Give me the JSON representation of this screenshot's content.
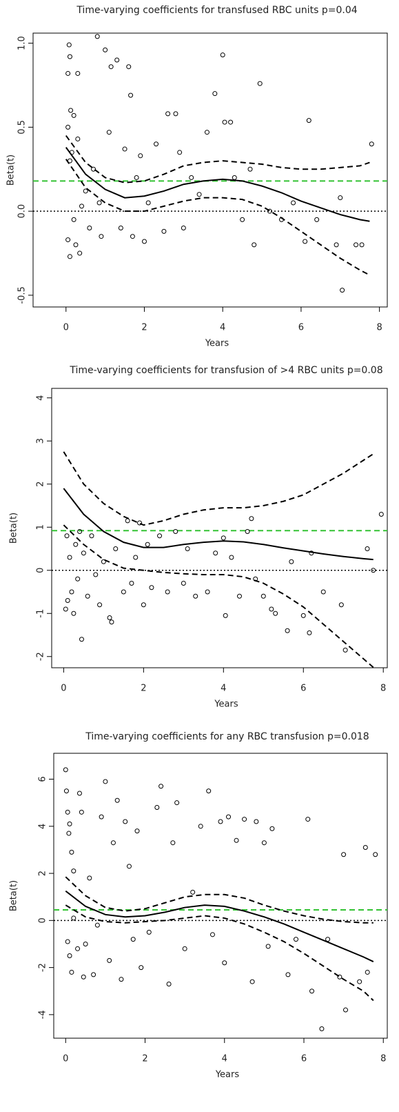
{
  "chart_data": [
    {
      "type": "scatter",
      "title": "Time-varying coefficients for transfused RBC units p=0.04",
      "xlabel": "Years",
      "ylabel": "Beta(t)",
      "xlim": [
        -0.84,
        8.2
      ],
      "ylim": [
        -0.57,
        1.06
      ],
      "xticks": [
        0,
        2,
        4,
        6,
        8
      ],
      "yticks": [
        -0.5,
        {
          "value": 0,
          "label": "0.0"
        },
        0.5,
        {
          "value": 1,
          "label": "1.0"
        }
      ],
      "hlines": [
        {
          "value": 0.18,
          "color": "#33c233",
          "style": "dashed"
        },
        {
          "value": 0,
          "color": "#000000",
          "style": "dotted"
        }
      ],
      "series": [
        {
          "style": "points",
          "color": "#000000",
          "x": [
            0.05,
            0.08,
            0.1,
            0.12,
            0.05,
            0.2,
            0.3,
            0.1,
            0.15,
            0.3,
            0.05,
            0.1,
            0.2,
            0.25,
            0.35,
            0.4,
            0.5,
            0.6,
            0.7,
            0.8,
            0.85,
            0.9,
            1.0,
            1.1,
            1.15,
            1.3,
            1.4,
            1.5,
            1.6,
            1.65,
            1.7,
            1.8,
            1.9,
            2.0,
            2.1,
            2.3,
            2.5,
            2.6,
            2.8,
            2.9,
            3.0,
            3.2,
            3.4,
            3.6,
            3.8,
            4.0,
            4.05,
            4.2,
            4.3,
            4.5,
            4.7,
            4.8,
            4.95,
            5.2,
            5.5,
            5.8,
            6.1,
            6.2,
            6.4,
            6.9,
            7.0,
            7.05,
            7.4,
            7.55,
            7.8
          ],
          "values": [
            0.82,
            0.99,
            0.92,
            0.6,
            0.5,
            0.57,
            0.82,
            0.3,
            0.35,
            0.43,
            -0.17,
            -0.27,
            -0.05,
            -0.2,
            -0.25,
            0.03,
            0.12,
            -0.1,
            0.25,
            1.04,
            0.05,
            -0.15,
            0.96,
            0.47,
            0.86,
            0.9,
            -0.1,
            0.37,
            0.86,
            0.69,
            -0.15,
            0.2,
            0.33,
            -0.18,
            0.05,
            0.4,
            -0.12,
            0.58,
            0.58,
            0.35,
            -0.1,
            0.2,
            0.1,
            0.47,
            0.7,
            0.93,
            0.53,
            0.53,
            0.2,
            -0.05,
            0.25,
            -0.2,
            0.76,
            0.0,
            -0.05,
            0.05,
            -0.18,
            0.54,
            -0.05,
            -0.2,
            0.08,
            -0.47,
            -0.2,
            -0.2,
            0.4
          ]
        },
        {
          "style": "solid",
          "color": "#000000",
          "x": [
            0,
            0.5,
            1,
            1.5,
            2,
            2.5,
            3,
            3.5,
            4,
            4.5,
            5,
            5.5,
            6,
            6.5,
            7,
            7.5,
            7.75
          ],
          "values": [
            0.38,
            0.22,
            0.13,
            0.08,
            0.09,
            0.12,
            0.16,
            0.18,
            0.19,
            0.18,
            0.15,
            0.11,
            0.06,
            0.02,
            -0.02,
            -0.05,
            -0.06
          ]
        },
        {
          "style": "dashed",
          "color": "#000000",
          "x": [
            0,
            0.5,
            1,
            1.5,
            2,
            2.5,
            3,
            3.5,
            4,
            4.5,
            5,
            5.5,
            6,
            6.5,
            7,
            7.5,
            7.75
          ],
          "values": [
            0.45,
            0.29,
            0.2,
            0.17,
            0.18,
            0.22,
            0.27,
            0.29,
            0.3,
            0.29,
            0.28,
            0.26,
            0.25,
            0.25,
            0.26,
            0.27,
            0.29
          ]
        },
        {
          "style": "dashed",
          "color": "#000000",
          "x": [
            0,
            0.5,
            1,
            1.5,
            2,
            2.5,
            3,
            3.5,
            4,
            4.5,
            5,
            5.5,
            6,
            6.5,
            7,
            7.5,
            7.75
          ],
          "values": [
            0.31,
            0.14,
            0.05,
            0.0,
            0.0,
            0.03,
            0.06,
            0.08,
            0.08,
            0.07,
            0.03,
            -0.04,
            -0.12,
            -0.2,
            -0.28,
            -0.35,
            -0.38
          ]
        }
      ]
    },
    {
      "type": "scatter",
      "title": "Time-varying coefficients for transfusion of >4 RBC units  p=0.08",
      "xlabel": "Years",
      "ylabel": "Beta(t)",
      "xlim": [
        -0.3,
        8.1
      ],
      "ylim": [
        -2.26,
        4.22
      ],
      "xticks": [
        0,
        2,
        4,
        6,
        8
      ],
      "yticks": [
        -2,
        -1,
        0,
        1,
        2,
        3,
        4
      ],
      "hlines": [
        {
          "value": 0.92,
          "color": "#33c233",
          "style": "dashed"
        },
        {
          "value": 0,
          "color": "#000000",
          "style": "dotted"
        }
      ],
      "series": [
        {
          "style": "points",
          "color": "#000000",
          "x": [
            0.05,
            0.1,
            0.08,
            0.15,
            0.2,
            0.25,
            0.3,
            0.35,
            0.4,
            0.45,
            0.5,
            0.6,
            0.7,
            0.8,
            0.9,
            1.0,
            1.15,
            1.2,
            1.3,
            1.5,
            1.6,
            1.7,
            1.8,
            1.9,
            2.0,
            2.1,
            2.2,
            2.4,
            2.6,
            2.8,
            3.0,
            3.1,
            3.3,
            3.6,
            3.8,
            4.0,
            4.05,
            4.2,
            4.4,
            4.6,
            4.7,
            4.8,
            5.0,
            5.2,
            5.3,
            5.6,
            5.7,
            6.0,
            6.15,
            6.2,
            6.5,
            6.95,
            7.05,
            7.6,
            7.75,
            7.95
          ],
          "values": [
            -0.9,
            -0.7,
            0.8,
            0.3,
            -0.5,
            -1.0,
            0.6,
            -0.2,
            0.9,
            -1.6,
            0.4,
            -0.6,
            0.8,
            -0.1,
            -0.8,
            0.2,
            -1.1,
            -1.2,
            0.5,
            -0.5,
            1.15,
            -0.3,
            0.3,
            1.1,
            -0.8,
            0.6,
            -0.4,
            0.8,
            -0.5,
            0.9,
            -0.3,
            0.5,
            -0.6,
            -0.5,
            0.4,
            0.75,
            -1.05,
            0.3,
            -0.6,
            0.9,
            1.2,
            -0.2,
            -0.6,
            -0.9,
            -1.0,
            -1.4,
            0.2,
            -1.05,
            -1.45,
            0.4,
            -0.5,
            -0.8,
            -1.85,
            0.5,
            0.0,
            1.3
          ]
        },
        {
          "style": "solid",
          "color": "#000000",
          "x": [
            0,
            0.5,
            1,
            1.5,
            2,
            2.5,
            3,
            3.5,
            4,
            4.5,
            5,
            5.5,
            6,
            6.5,
            7,
            7.5,
            7.75
          ],
          "values": [
            1.9,
            1.3,
            0.9,
            0.65,
            0.53,
            0.53,
            0.6,
            0.65,
            0.68,
            0.66,
            0.6,
            0.52,
            0.45,
            0.38,
            0.32,
            0.27,
            0.25
          ]
        },
        {
          "style": "dashed",
          "color": "#000000",
          "x": [
            0,
            0.5,
            1,
            1.5,
            2,
            2.5,
            3,
            3.5,
            4,
            4.5,
            5,
            5.5,
            6,
            6.5,
            7,
            7.5,
            7.75
          ],
          "values": [
            2.75,
            2.0,
            1.55,
            1.25,
            1.05,
            1.15,
            1.3,
            1.4,
            1.45,
            1.45,
            1.5,
            1.6,
            1.75,
            2.0,
            2.25,
            2.55,
            2.7
          ]
        },
        {
          "style": "dashed",
          "color": "#000000",
          "x": [
            0,
            0.5,
            1,
            1.5,
            2,
            2.5,
            3,
            3.5,
            4,
            4.5,
            5,
            5.5,
            6,
            6.5,
            7,
            7.5,
            7.75
          ],
          "values": [
            1.05,
            0.6,
            0.25,
            0.05,
            0.0,
            -0.05,
            -0.08,
            -0.1,
            -0.1,
            -0.15,
            -0.3,
            -0.55,
            -0.85,
            -1.25,
            -1.65,
            -2.05,
            -2.25
          ]
        }
      ]
    },
    {
      "type": "scatter",
      "title": "Time-varying coefficients  for any RBC transfusion  p=0.018",
      "xlabel": "Years",
      "ylabel": "Beta(t)",
      "xlim": [
        -0.3,
        8.1
      ],
      "ylim": [
        -5.0,
        7.1
      ],
      "xticks": [
        0,
        2,
        4,
        6,
        8
      ],
      "yticks": [
        -4,
        -2,
        0,
        2,
        4,
        6
      ],
      "hlines": [
        {
          "value": 0.45,
          "color": "#33c233",
          "style": "dashed"
        },
        {
          "value": 0,
          "color": "#000000",
          "style": "dotted"
        }
      ],
      "series": [
        {
          "style": "points",
          "color": "#000000",
          "x": [
            0.0,
            0.02,
            0.05,
            0.1,
            0.08,
            0.15,
            0.2,
            0.05,
            0.1,
            0.15,
            0.2,
            0.3,
            0.35,
            0.4,
            0.45,
            0.5,
            0.6,
            0.7,
            0.8,
            0.9,
            1.0,
            1.1,
            1.2,
            1.3,
            1.4,
            1.5,
            1.6,
            1.7,
            1.8,
            1.9,
            2.1,
            2.3,
            2.4,
            2.6,
            2.7,
            2.8,
            3.0,
            3.2,
            3.4,
            3.6,
            3.7,
            3.9,
            4.0,
            4.1,
            4.3,
            4.5,
            4.7,
            4.8,
            5.0,
            5.1,
            5.2,
            5.6,
            5.8,
            6.1,
            6.2,
            6.45,
            6.6,
            6.9,
            7.0,
            7.05,
            7.4,
            7.55,
            7.6,
            7.8
          ],
          "values": [
            6.4,
            5.5,
            4.6,
            4.1,
            3.7,
            2.9,
            2.1,
            -0.9,
            -1.5,
            -2.2,
            0.1,
            -1.2,
            5.4,
            4.6,
            -2.4,
            -1.0,
            1.8,
            -2.3,
            -0.2,
            4.4,
            5.9,
            -1.7,
            3.3,
            5.1,
            -2.5,
            4.2,
            2.3,
            -0.8,
            3.8,
            -2.0,
            -0.5,
            4.8,
            5.7,
            -2.7,
            3.3,
            5.0,
            -1.2,
            1.2,
            4.0,
            5.5,
            -0.6,
            4.2,
            -1.8,
            4.4,
            3.4,
            4.3,
            -2.6,
            4.2,
            3.3,
            -1.1,
            3.9,
            -2.3,
            -0.8,
            4.3,
            -3.0,
            -4.6,
            -0.8,
            -2.4,
            2.8,
            -3.8,
            -2.6,
            3.1,
            -2.2,
            2.8
          ]
        },
        {
          "style": "solid",
          "color": "#000000",
          "x": [
            0,
            0.5,
            1,
            1.5,
            2,
            2.5,
            3,
            3.5,
            4,
            4.5,
            5,
            5.5,
            6,
            6.5,
            7,
            7.5,
            7.75
          ],
          "values": [
            1.25,
            0.6,
            0.25,
            0.15,
            0.2,
            0.35,
            0.55,
            0.65,
            0.6,
            0.4,
            0.15,
            -0.15,
            -0.5,
            -0.85,
            -1.2,
            -1.55,
            -1.75
          ]
        },
        {
          "style": "dashed",
          "color": "#000000",
          "x": [
            0,
            0.5,
            1,
            1.5,
            2,
            2.5,
            3,
            3.5,
            4,
            4.5,
            5,
            5.5,
            6,
            6.5,
            7,
            7.5,
            7.75
          ],
          "values": [
            1.85,
            1.05,
            0.55,
            0.4,
            0.5,
            0.75,
            1.0,
            1.1,
            1.1,
            0.95,
            0.65,
            0.4,
            0.2,
            0.05,
            -0.05,
            -0.1,
            -0.1
          ]
        },
        {
          "style": "dashed",
          "color": "#000000",
          "x": [
            0,
            0.5,
            1,
            1.5,
            2,
            2.5,
            3,
            3.5,
            4,
            4.5,
            5,
            5.5,
            6,
            6.5,
            7,
            7.5,
            7.75
          ],
          "values": [
            0.65,
            0.15,
            -0.05,
            -0.1,
            -0.05,
            0.0,
            0.1,
            0.2,
            0.1,
            -0.15,
            -0.5,
            -0.9,
            -1.4,
            -1.95,
            -2.5,
            -3.0,
            -3.4
          ]
        }
      ]
    }
  ]
}
